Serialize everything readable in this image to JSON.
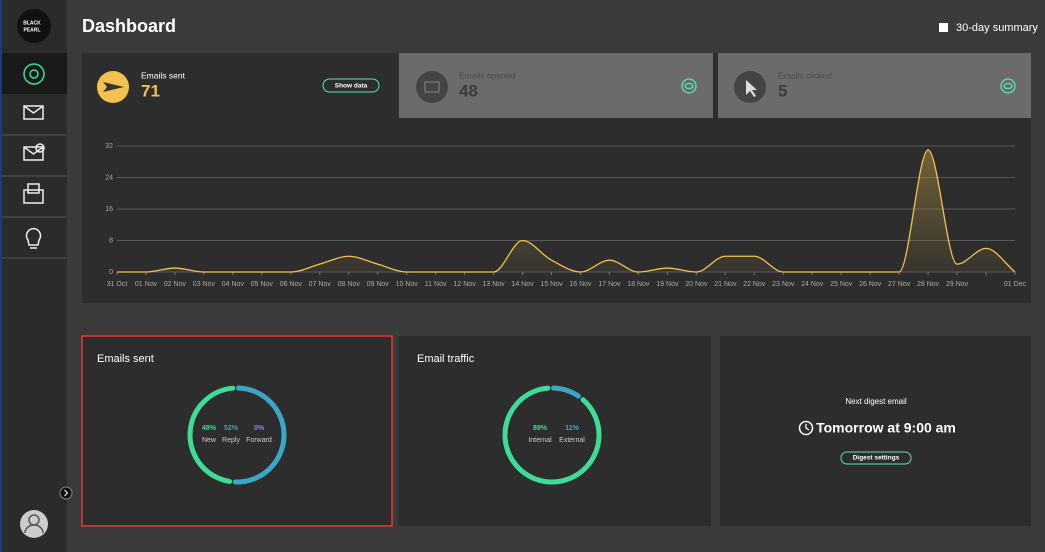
{
  "sidebar": {
    "logo": [
      "BLACK",
      "PEARL"
    ]
  },
  "header": {
    "title": "Dashboard",
    "summary": "30-day summary"
  },
  "stats": [
    {
      "label": "Emails sent",
      "value": 71,
      "button": "Show data"
    },
    {
      "label": "Emails opened",
      "value": 48
    },
    {
      "label": "Emails clicked",
      "value": 5
    }
  ],
  "chart_data": {
    "type": "line",
    "x": [
      "31 Oct",
      "01 Nov",
      "02 Nov",
      "03 Nov",
      "04 Nov",
      "05 Nov",
      "06 Nov",
      "07 Nov",
      "08 Nov",
      "09 Nov",
      "10 Nov",
      "11 Nov",
      "12 Nov",
      "13 Nov",
      "14 Nov",
      "15 Nov",
      "16 Nov",
      "17 Nov",
      "18 Nov",
      "19 Nov",
      "20 Nov",
      "21 Nov",
      "22 Nov",
      "23 Nov",
      "24 Nov",
      "25 Nov",
      "26 Nov",
      "27 Nov",
      "28 Nov",
      "29 Nov",
      null,
      "01 Dec"
    ],
    "values": [
      0,
      0,
      1,
      0,
      0,
      0,
      0,
      2,
      4,
      2,
      0,
      0,
      0,
      0,
      8,
      3,
      0,
      3,
      0,
      1,
      0,
      4,
      4,
      0,
      0,
      0,
      0,
      0,
      31,
      2,
      6,
      0
    ],
    "color": "#f2c14e",
    "ylim": [
      0,
      32
    ],
    "yticks": [
      0,
      8,
      16,
      24,
      32
    ],
    "grid": true
  },
  "panels": {
    "sent": {
      "title": "Emails sent",
      "segments": [
        {
          "name": "Reply",
          "value": 52,
          "value_label": "52%",
          "color": "#3aa7c9"
        },
        {
          "name": "New",
          "value": 48,
          "value_label": "48%",
          "color": "#3ddc97"
        },
        {
          "name": "Forward",
          "value": 0,
          "value_label": "0%",
          "color": "#9b7fe6"
        }
      ]
    },
    "traffic": {
      "title": "Email traffic",
      "segments": [
        {
          "name": "External",
          "value": 11,
          "value_label": "11%",
          "color": "#3aa7c9"
        },
        {
          "name": "Internal",
          "value": 89,
          "value_label": "89%",
          "color": "#3ddc97"
        }
      ]
    },
    "digest": {
      "label": "Next digest email",
      "time": "Tomorrow at 9:00 am",
      "button": "Digest settings"
    }
  }
}
